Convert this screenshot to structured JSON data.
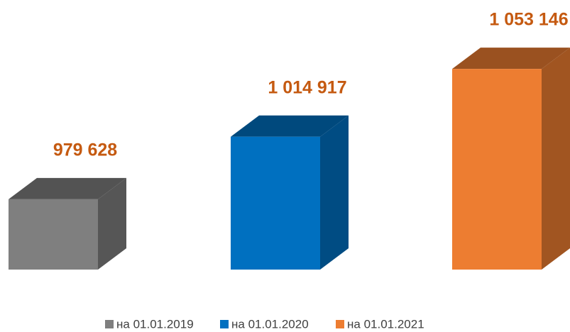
{
  "chart_data": {
    "type": "bar3d",
    "series": [
      {
        "name": "на 01.01.2019",
        "color": "#7f7f7f",
        "values": [
          979628
        ],
        "value_labels": [
          "979 628"
        ]
      },
      {
        "name": "на 01.01.2020",
        "color": "#0070c0",
        "values": [
          1014917
        ],
        "value_labels": [
          "1 014 917"
        ]
      },
      {
        "name": "на 01.01.2021",
        "color": "#ed7d31",
        "values": [
          1053146
        ],
        "value_labels": [
          "1 053 146"
        ]
      }
    ],
    "label_color": "#c55a11",
    "ylim": [
      940000,
      1060000
    ]
  }
}
